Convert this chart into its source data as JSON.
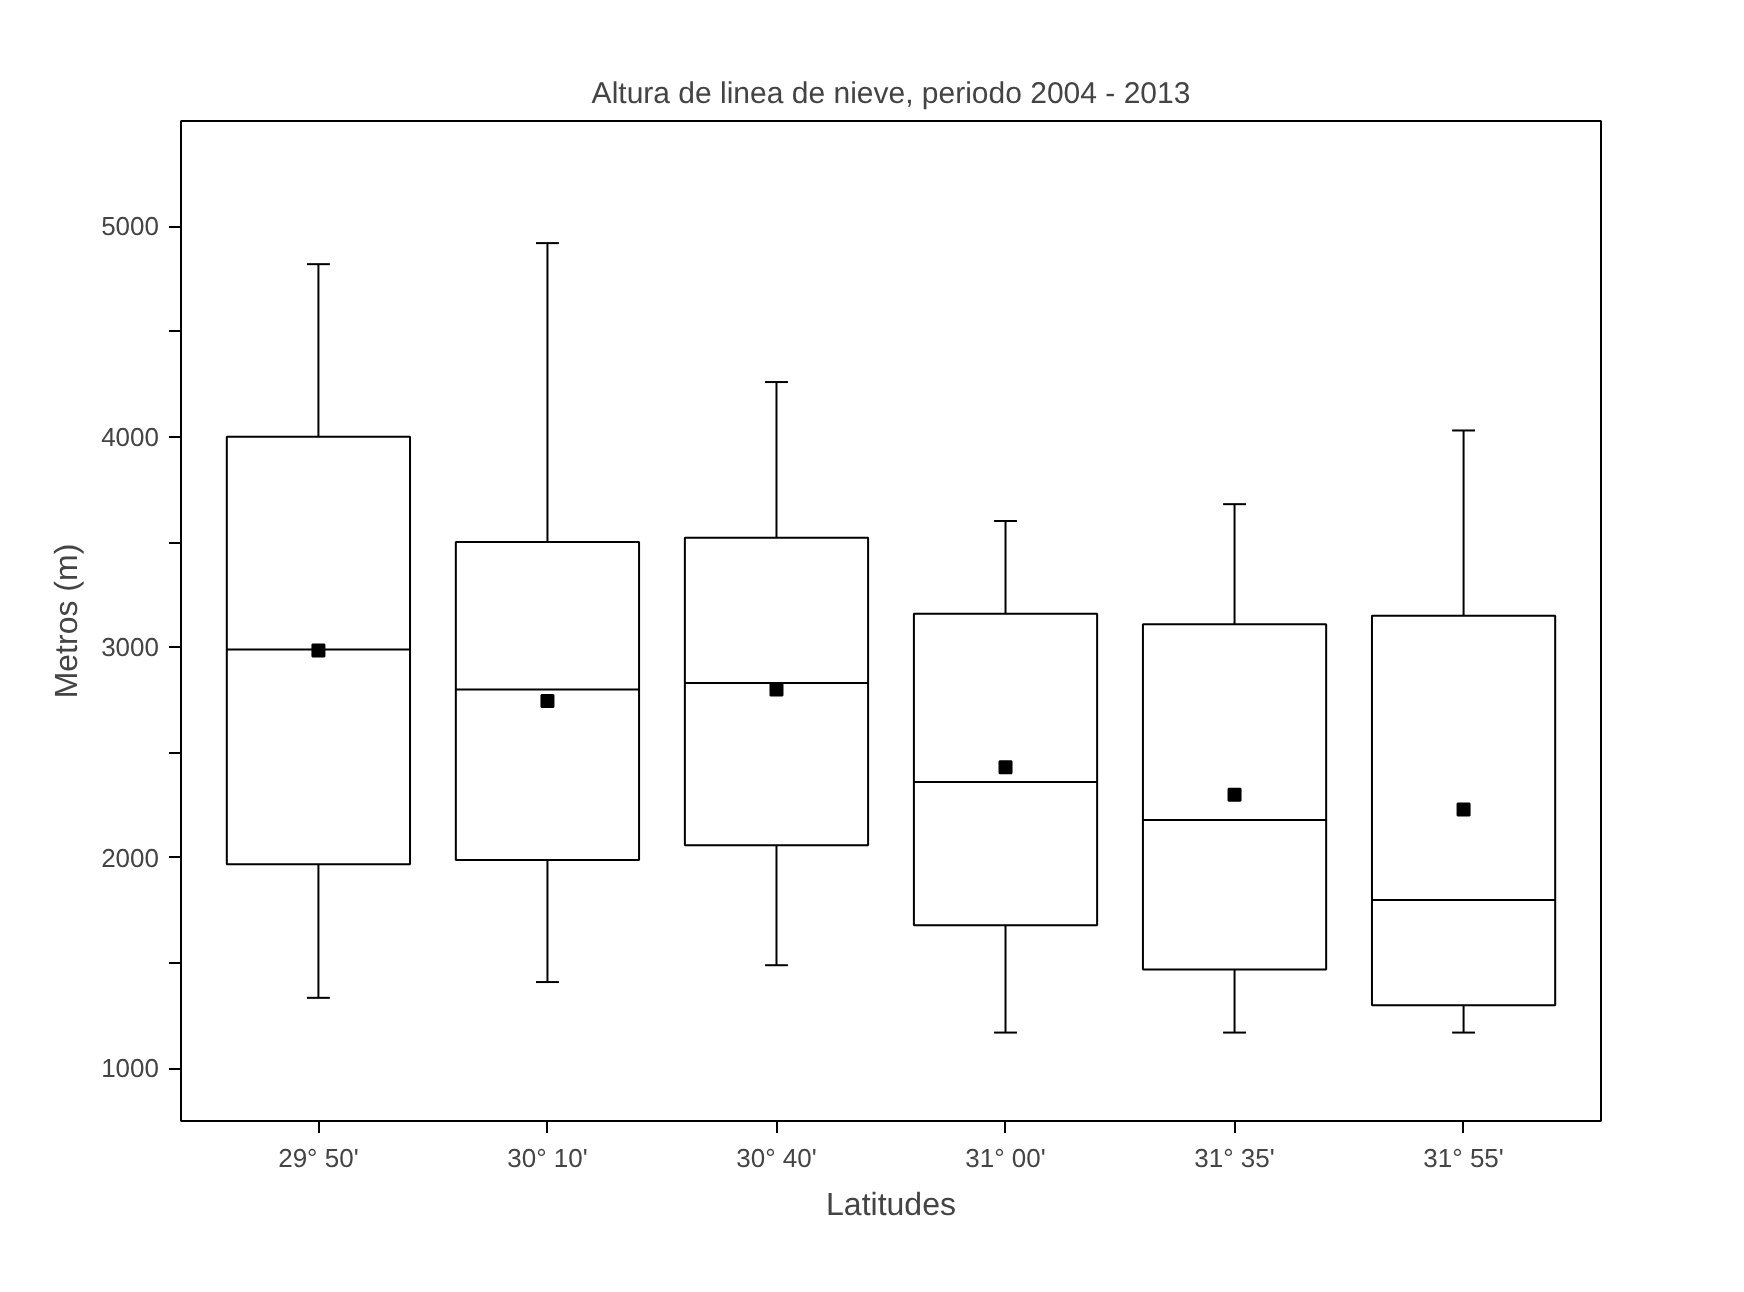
{
  "chart_data": {
    "type": "box",
    "title": "Altura de linea de nieve, periodo 2004 - 2013",
    "xlabel": "Latitudes",
    "ylabel": "Metros (m)",
    "categories": [
      "29° 50'",
      "30° 10'",
      "30° 40'",
      "31° 00'",
      "31° 35'",
      "31° 55'"
    ],
    "boxes": [
      {
        "low": 1335,
        "q1": 1970,
        "median": 2990,
        "q3": 4000,
        "high": 4820,
        "mean": 2985
      },
      {
        "low": 1410,
        "q1": 1990,
        "median": 2800,
        "q3": 3500,
        "high": 4920,
        "mean": 2745
      },
      {
        "low": 1490,
        "q1": 2060,
        "median": 2830,
        "q3": 3520,
        "high": 4260,
        "mean": 2800
      },
      {
        "low": 1170,
        "q1": 1680,
        "median": 2360,
        "q3": 3160,
        "high": 3600,
        "mean": 2430
      },
      {
        "low": 1170,
        "q1": 1470,
        "median": 2180,
        "q3": 3110,
        "high": 3680,
        "mean": 2300
      },
      {
        "low": 1170,
        "q1": 1300,
        "median": 1800,
        "q3": 3150,
        "high": 4030,
        "mean": 2230
      }
    ],
    "ylim": [
      750,
      5500
    ],
    "yticks": [
      1000,
      {
        "value": 1500,
        "label": null
      },
      2000,
      {
        "value": 2500,
        "label": null
      },
      3000,
      {
        "value": 3500,
        "label": null
      },
      4000,
      {
        "value": 4500,
        "label": null
      },
      5000
    ],
    "grid": false,
    "marker": "square"
  }
}
